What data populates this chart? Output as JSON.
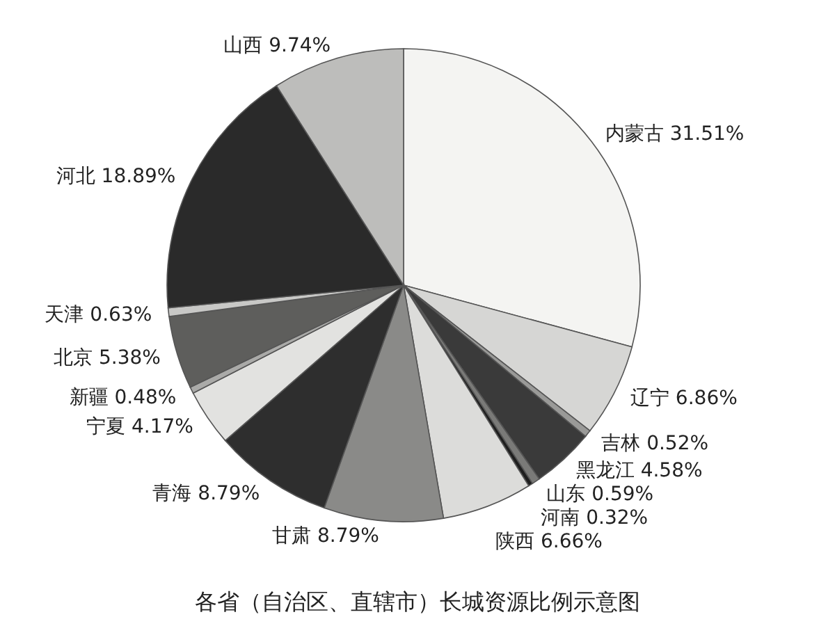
{
  "chart_data": {
    "type": "pie",
    "title": "各省（自治区、直辖市）长城资源比例示意图",
    "categories": [
      "内蒙古",
      "辽宁",
      "吉林",
      "黑龙江",
      "山东",
      "河南",
      "陕西",
      "甘肃",
      "青海",
      "宁夏",
      "新疆",
      "北京",
      "天津",
      "河北",
      "山西"
    ],
    "values": [
      31.51,
      6.86,
      0.52,
      4.58,
      0.59,
      0.32,
      6.66,
      8.79,
      8.79,
      4.17,
      0.48,
      5.38,
      0.63,
      18.89,
      9.74
    ],
    "value_labels": [
      "31.51%",
      "6.86%",
      "0.52%",
      "4.58%",
      "0.59%",
      "0.32%",
      "6.66%",
      "8.79%",
      "8.79%",
      "4.17%",
      "0.48%",
      "5.38%",
      "0.63%",
      "18.89%",
      "9.74%"
    ],
    "colors": [
      "#f4f4f2",
      "#d6d6d4",
      "#9a9a98",
      "#3a3a3a",
      "#7a7a78",
      "#1e1e1e",
      "#dcdcda",
      "#8a8a88",
      "#2e2e2e",
      "#e2e2e0",
      "#aaaaa8",
      "#5e5e5c",
      "#c8c8c6",
      "#2a2a2a",
      "#bdbdbb"
    ]
  }
}
